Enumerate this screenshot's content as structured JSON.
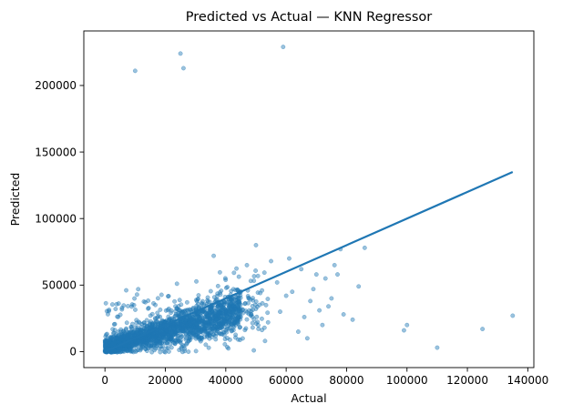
{
  "chart_data": {
    "type": "scatter",
    "title": "Predicted vs Actual — KNN Regressor",
    "xlabel": "Actual",
    "ylabel": "Predicted",
    "xlim": [
      -7000,
      142000
    ],
    "ylim": [
      -12000,
      241000
    ],
    "xticks": [
      0,
      20000,
      40000,
      60000,
      80000,
      100000,
      120000,
      140000
    ],
    "yticks": [
      0,
      50000,
      100000,
      150000,
      200000
    ],
    "grid": false,
    "legend": "none",
    "colors": {
      "points": "#1f77b4",
      "line": "#1f77b4"
    },
    "reference_line": {
      "x": [
        0,
        135000
      ],
      "y": [
        0,
        135000
      ]
    },
    "cloud": {
      "description_of_distribution": "dense cloud near the identity line at low values",
      "count": 2200,
      "x_range": [
        0,
        45000
      ],
      "prediction_spread": "about 0.6 of actual, with scatter up to ~50000"
    },
    "outliers": [
      {
        "x": 10000,
        "y": 211000
      },
      {
        "x": 25000,
        "y": 224000
      },
      {
        "x": 26000,
        "y": 213000
      },
      {
        "x": 59000,
        "y": 229000
      },
      {
        "x": 50000,
        "y": 80000
      },
      {
        "x": 36000,
        "y": 72000
      },
      {
        "x": 78000,
        "y": 77000
      },
      {
        "x": 86000,
        "y": 78000
      },
      {
        "x": 55000,
        "y": 68000
      },
      {
        "x": 61000,
        "y": 70000
      },
      {
        "x": 47000,
        "y": 65000
      },
      {
        "x": 65000,
        "y": 62000
      },
      {
        "x": 76000,
        "y": 65000
      },
      {
        "x": 70000,
        "y": 58000
      },
      {
        "x": 73000,
        "y": 55000
      },
      {
        "x": 77000,
        "y": 58000
      },
      {
        "x": 84000,
        "y": 49000
      },
      {
        "x": 100000,
        "y": 20000
      },
      {
        "x": 99000,
        "y": 16000
      },
      {
        "x": 110000,
        "y": 3000
      },
      {
        "x": 125000,
        "y": 17000
      },
      {
        "x": 135000,
        "y": 27000
      },
      {
        "x": 79000,
        "y": 28000
      },
      {
        "x": 82000,
        "y": 24000
      },
      {
        "x": 71000,
        "y": 31000
      },
      {
        "x": 68000,
        "y": 38000
      },
      {
        "x": 75000,
        "y": 40000
      },
      {
        "x": 62000,
        "y": 45000
      },
      {
        "x": 58000,
        "y": 30000
      },
      {
        "x": 66000,
        "y": 26000
      },
      {
        "x": 72000,
        "y": 20000
      },
      {
        "x": 64000,
        "y": 15000
      },
      {
        "x": 54000,
        "y": 22000
      },
      {
        "x": 57000,
        "y": 52000
      },
      {
        "x": 60000,
        "y": 42000
      },
      {
        "x": 52000,
        "y": 46000
      },
      {
        "x": 69000,
        "y": 47000
      },
      {
        "x": 74000,
        "y": 34000
      },
      {
        "x": 67000,
        "y": 10000
      },
      {
        "x": 53000,
        "y": 8000
      }
    ]
  }
}
